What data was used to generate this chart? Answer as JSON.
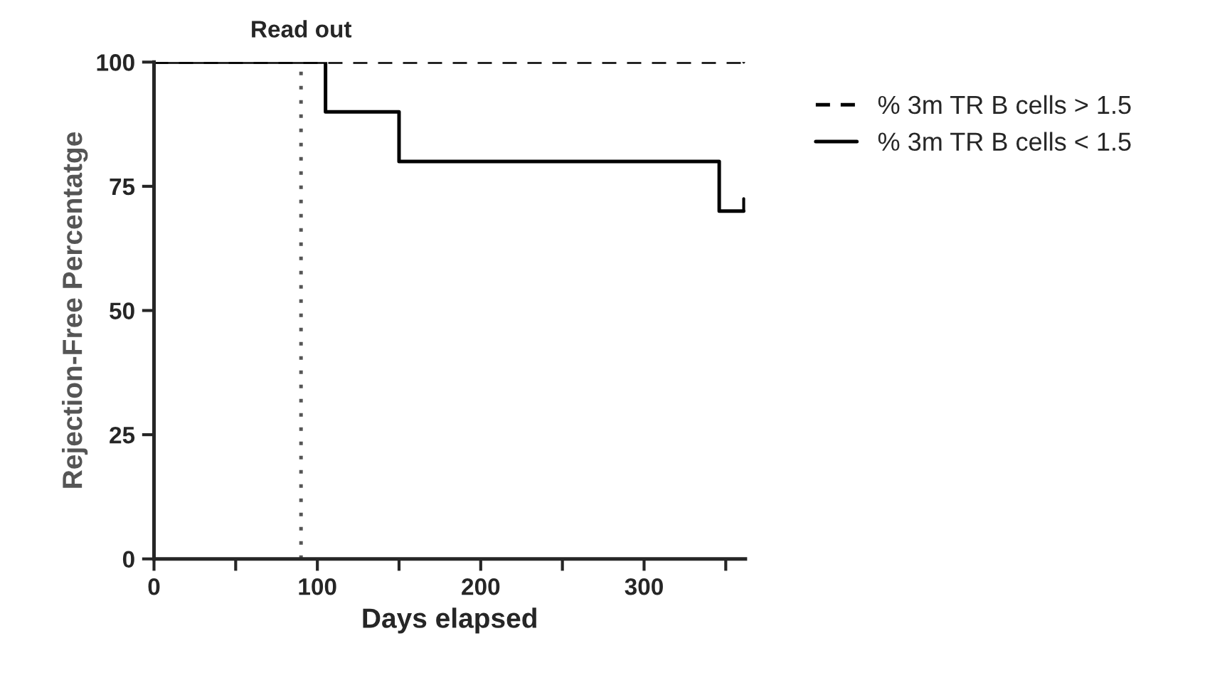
{
  "chart_data": {
    "type": "step",
    "xlabel": "Days elapsed",
    "ylabel": "Rejection-Free Percentatge",
    "series": [
      {
        "name": "% 3m TR B cells > 1.5",
        "color": "#000000",
        "line_style": "dashed",
        "x": [
          0,
          361
        ],
        "values": [
          100,
          100
        ]
      },
      {
        "name": "% 3m TR B cells < 1.5",
        "color": "#000000",
        "line_style": "solid",
        "x": [
          0,
          105,
          150,
          346,
          361
        ],
        "values": [
          100,
          90,
          80,
          70,
          70
        ]
      }
    ],
    "xlim": [
      0,
      362
    ],
    "xticks": [
      0,
      {
        "value": 50,
        "label": null
      },
      100,
      {
        "value": 150,
        "label": null
      },
      200,
      {
        "value": 250,
        "label": null
      },
      300,
      {
        "value": 350,
        "label": null
      }
    ],
    "ylim": [
      0,
      100
    ],
    "yticks": [
      0,
      25,
      50,
      75,
      100
    ],
    "ref_lines": [
      {
        "axis": "x",
        "value": 90,
        "label": "Read out",
        "color": "#555555",
        "line_style": "dotted"
      }
    ],
    "grid": false,
    "legend": "right"
  }
}
